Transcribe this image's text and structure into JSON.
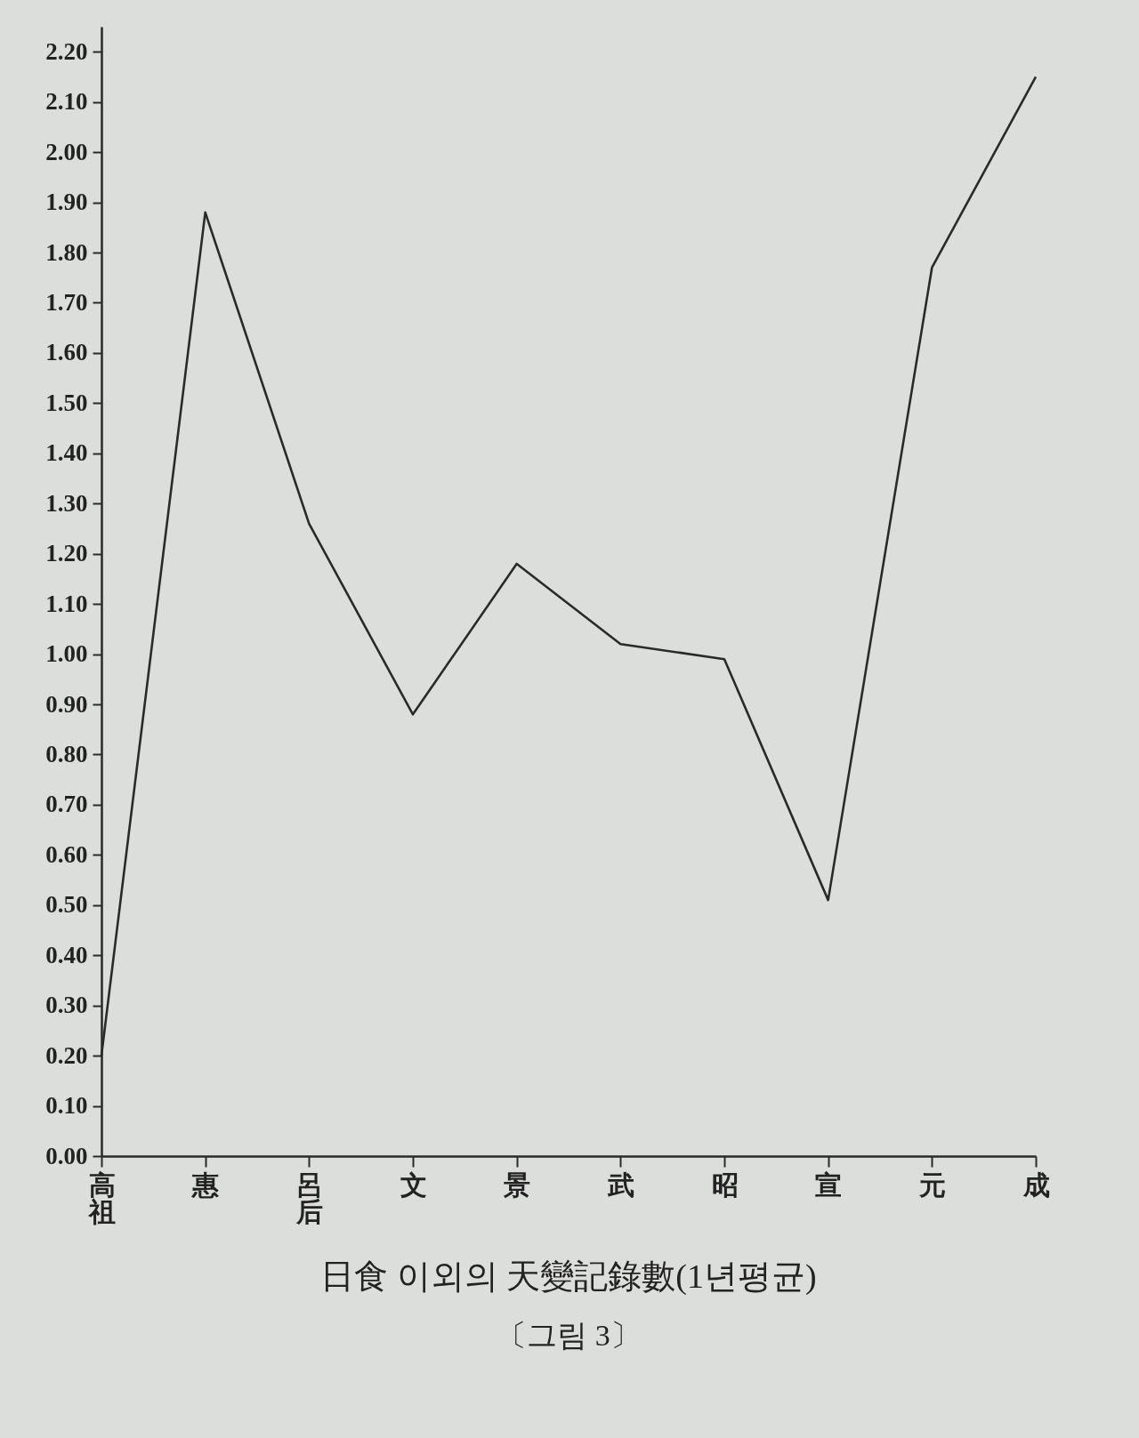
{
  "chart_data": {
    "type": "line",
    "title": "日食 이외의 天變記錄數(1년평균)",
    "annotations": [
      "〔그림 3〕"
    ],
    "categories": [
      "高祖",
      "惠",
      "呂后",
      "文",
      "景",
      "武",
      "昭",
      "宣",
      "元",
      "成"
    ],
    "series": [
      {
        "color": "#2a2a2a",
        "values": [
          0.2,
          1.88,
          1.26,
          0.88,
          1.18,
          1.02,
          0.99,
          0.51,
          1.77,
          2.15
        ]
      }
    ],
    "ylim": [
      0,
      2.25
    ],
    "yticks": [
      {
        "value": 0,
        "label": "0.00"
      },
      {
        "value": 0.1,
        "label": "0.10"
      },
      {
        "value": 0.2,
        "label": "0.20"
      },
      {
        "value": 0.3,
        "label": "0.30"
      },
      {
        "value": 0.4,
        "label": "0.40"
      },
      {
        "value": 0.5,
        "label": "0.50"
      },
      {
        "value": 0.6,
        "label": "0.60"
      },
      {
        "value": 0.7,
        "label": "0.70"
      },
      {
        "value": 0.8,
        "label": "0.80"
      },
      {
        "value": 0.9,
        "label": "0.90"
      },
      {
        "value": 1,
        "label": "1.00"
      },
      {
        "value": 1.1,
        "label": "1.10"
      },
      {
        "value": 1.2,
        "label": "1.20"
      },
      {
        "value": 1.3,
        "label": "1.30"
      },
      {
        "value": 1.4,
        "label": "1.40"
      },
      {
        "value": 1.5,
        "label": "1.50"
      },
      {
        "value": 1.6,
        "label": "1.60"
      },
      {
        "value": 1.7,
        "label": "1.70"
      },
      {
        "value": 1.8,
        "label": "1.80"
      },
      {
        "value": 1.9,
        "label": "1.90"
      },
      {
        "value": 2,
        "label": "2.00"
      },
      {
        "value": 2.1,
        "label": "2.10"
      },
      {
        "value": 2.2,
        "label": "2.20"
      }
    ],
    "marker": "none",
    "line_style": "solid"
  }
}
